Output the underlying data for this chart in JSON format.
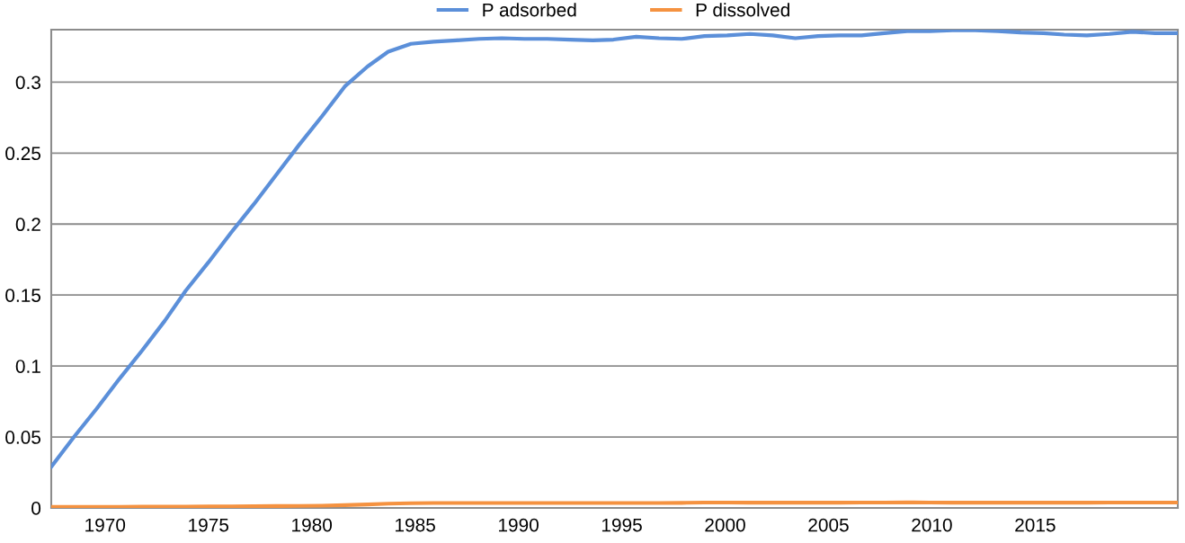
{
  "chart_data": {
    "type": "line",
    "x": [
      1967.4,
      1968.5,
      1969.6,
      1970.7,
      1971.8,
      1972.9,
      1973.9,
      1975.0,
      1976.1,
      1977.2,
      1978.3,
      1979.4,
      1980.5,
      1981.6,
      1982.7,
      1983.7,
      1984.8,
      1985.9,
      1987.0,
      1988.1,
      1989.2,
      1990.3,
      1991.4,
      1992.5,
      1993.6,
      1994.6,
      1995.7,
      1996.8,
      1997.9,
      1999.0,
      2000.1,
      2001.2,
      2002.3,
      2003.4,
      2004.5,
      2005.5,
      2006.6,
      2007.7,
      2008.8,
      2009.9,
      2011.0,
      2012.1,
      2013.2,
      2014.3,
      2015.4,
      2016.4,
      2017.5,
      2018.6,
      2019.7,
      2020.8,
      2021.9
    ],
    "series": [
      {
        "name": "P adsorbed",
        "color": "#5b8fd9",
        "values": [
          0.029,
          0.05,
          0.07,
          0.091,
          0.111,
          0.132,
          0.153,
          0.173,
          0.194,
          0.214,
          0.235,
          0.256,
          0.276,
          0.297,
          0.311,
          0.3215,
          0.327,
          0.3285,
          0.3295,
          0.3305,
          0.331,
          0.3305,
          0.3305,
          0.33,
          0.3295,
          0.33,
          0.332,
          0.331,
          0.3305,
          0.3325,
          0.333,
          0.334,
          0.333,
          0.331,
          0.3325,
          0.333,
          0.333,
          0.3345,
          0.336,
          0.336,
          0.3365,
          0.3365,
          0.336,
          0.335,
          0.3345,
          0.3335,
          0.333,
          0.334,
          0.3355,
          0.3345,
          0.3345
        ]
      },
      {
        "name": "P dissolved",
        "color": "#f59240",
        "values": [
          0.0008,
          0.0008,
          0.0008,
          0.0008,
          0.0009,
          0.0009,
          0.0009,
          0.001,
          0.0011,
          0.0012,
          0.0013,
          0.0014,
          0.0016,
          0.002,
          0.0025,
          0.003,
          0.0033,
          0.0035,
          0.0035,
          0.0035,
          0.0035,
          0.0035,
          0.0035,
          0.0035,
          0.0035,
          0.0035,
          0.0035,
          0.0035,
          0.0036,
          0.0038,
          0.0038,
          0.0037,
          0.0037,
          0.0037,
          0.0037,
          0.0037,
          0.0038,
          0.0038,
          0.0039,
          0.0038,
          0.0037,
          0.0037,
          0.0037,
          0.0037,
          0.0037,
          0.0037,
          0.0037,
          0.0038,
          0.0038,
          0.0038,
          0.0038
        ]
      }
    ],
    "xlim": [
      1967.4,
      2021.9
    ],
    "xticks": [
      1970,
      1975,
      1980,
      1985,
      1990,
      1995,
      2000,
      2005,
      2010,
      2015
    ],
    "ylim": [
      0,
      0.337
    ],
    "yticks": [
      0,
      0.05,
      0.1,
      0.15,
      0.2,
      0.25,
      0.3
    ],
    "grid": "y",
    "legend": "top",
    "marker": "none",
    "line_style": "solid"
  }
}
